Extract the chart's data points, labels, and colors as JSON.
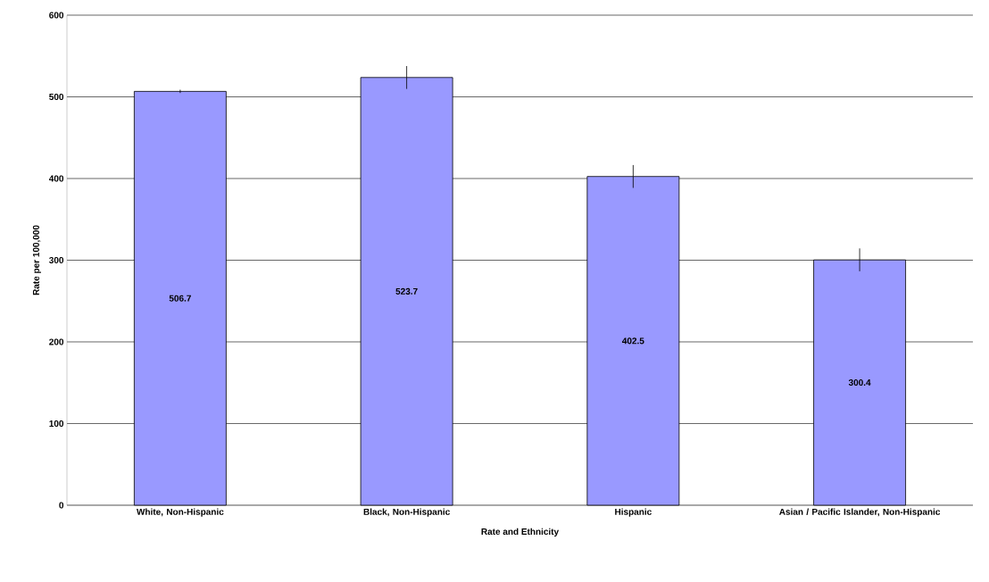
{
  "chart_data": {
    "type": "bar",
    "xlabel": "Rate and Ethnicity",
    "ylabel": "Rate per 100,000",
    "categories": [
      "White, Non-Hispanic",
      "Black, Non-Hispanic",
      "Hispanic",
      "Asian / Pacific Islander, Non-Hispanic"
    ],
    "values": [
      506.7,
      523.7,
      402.5,
      300.4
    ],
    "errors": [
      2,
      14,
      14,
      14
    ],
    "color": "#9999ff",
    "data_labels": true,
    "ylim": [
      0,
      600
    ],
    "yticks": [
      0,
      100,
      200,
      300,
      400,
      500,
      600
    ],
    "grid": "y"
  }
}
